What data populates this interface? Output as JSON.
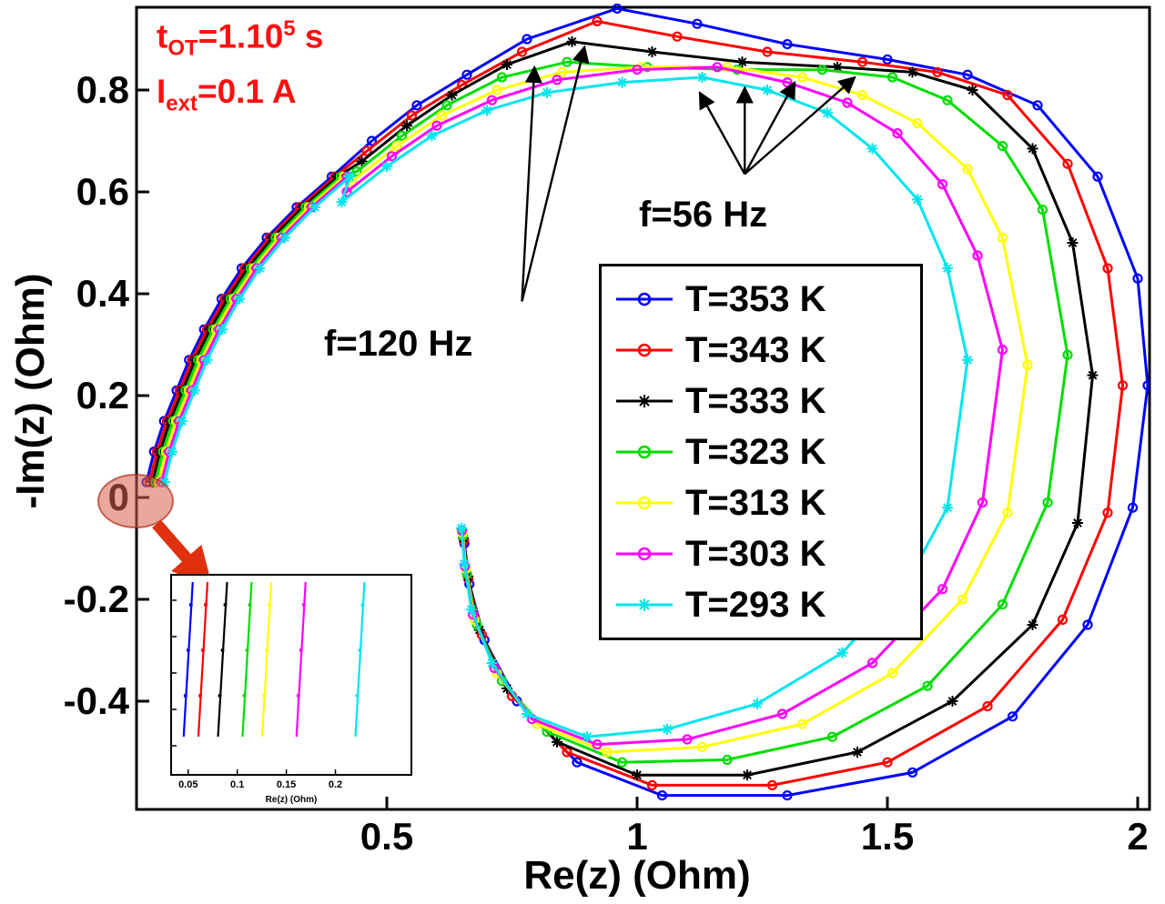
{
  "figure": {
    "background": "#ffffff",
    "plot_border_color": "#000000"
  },
  "params": {
    "color": "#ff1010",
    "line1": {
      "base": "t",
      "sub": "OT",
      "eq": "=1.10",
      "sup": "5",
      "unit": " s"
    },
    "line2": {
      "base": "I",
      "sub": "ext",
      "eq": "=0.1 A"
    }
  },
  "annotations": {
    "f56_label": "f=56 Hz",
    "f120_label": "f=120 Hz",
    "arrows": {
      "f120": {
        "tail": [
          0.77,
          0.385
        ],
        "heads": [
          [
            0.795,
            0.845
          ],
          [
            0.895,
            0.885
          ]
        ]
      },
      "f56": {
        "tail": [
          1.215,
          0.635
        ],
        "heads": [
          [
            1.125,
            0.795
          ],
          [
            1.215,
            0.805
          ],
          [
            1.315,
            0.815
          ],
          [
            1.435,
            0.825
          ]
        ]
      }
    }
  },
  "chart_data": {
    "type": "line",
    "title": "",
    "xlabel": "Re(z) (Ohm)",
    "ylabel": "-Im(z) (Ohm)",
    "xlim": [
      0,
      2.02
    ],
    "ylim": [
      -0.61,
      0.96
    ],
    "x_ticks": [
      0.5,
      1,
      1.5,
      2
    ],
    "x_tick_labels": [
      "0.5",
      "1",
      "1.5",
      "2"
    ],
    "y_ticks": [
      -0.4,
      -0.2,
      0,
      0.2,
      0.4,
      0.6,
      0.8
    ],
    "y_tick_labels": [
      "-0.4",
      "-0.2",
      "0",
      "0.2",
      "0.4",
      "0.6",
      "0.8"
    ],
    "grid": false,
    "legend_position": "center-right",
    "shared_branch": [
      [
        0.02,
        0.03
      ],
      [
        0.035,
        0.09
      ],
      [
        0.055,
        0.15
      ],
      [
        0.08,
        0.21
      ],
      [
        0.105,
        0.27
      ],
      [
        0.135,
        0.33
      ],
      [
        0.17,
        0.39
      ],
      [
        0.21,
        0.45
      ],
      [
        0.26,
        0.51
      ],
      [
        0.32,
        0.57
      ],
      [
        0.39,
        0.63
      ]
    ],
    "series": [
      {
        "name": "T=353 K",
        "temperature_K": 353,
        "color": "#0000ff",
        "marker": "o",
        "points": [
          [
            0.47,
            0.7
          ],
          [
            0.56,
            0.77
          ],
          [
            0.66,
            0.83
          ],
          [
            0.78,
            0.9
          ],
          [
            0.96,
            0.96
          ],
          [
            1.12,
            0.93
          ],
          [
            1.3,
            0.89
          ],
          [
            1.5,
            0.86
          ],
          [
            1.66,
            0.83
          ],
          [
            1.8,
            0.77
          ],
          [
            1.92,
            0.63
          ],
          [
            2.0,
            0.43
          ],
          [
            2.02,
            0.22
          ],
          [
            1.99,
            -0.02
          ],
          [
            1.9,
            -0.25
          ],
          [
            1.75,
            -0.43
          ],
          [
            1.55,
            -0.54
          ],
          [
            1.3,
            -0.585
          ],
          [
            1.05,
            -0.585
          ],
          [
            0.88,
            -0.52
          ],
          [
            0.76,
            -0.4
          ],
          [
            0.695,
            -0.28
          ],
          [
            0.665,
            -0.17
          ],
          [
            0.655,
            -0.09
          ]
        ]
      },
      {
        "name": "T=343 K",
        "temperature_K": 343,
        "color": "#ff0000",
        "marker": "o",
        "points": [
          [
            0.46,
            0.68
          ],
          [
            0.55,
            0.75
          ],
          [
            0.65,
            0.81
          ],
          [
            0.77,
            0.875
          ],
          [
            0.92,
            0.935
          ],
          [
            1.08,
            0.905
          ],
          [
            1.26,
            0.875
          ],
          [
            1.45,
            0.855
          ],
          [
            1.6,
            0.835
          ],
          [
            1.74,
            0.79
          ],
          [
            1.86,
            0.655
          ],
          [
            1.94,
            0.45
          ],
          [
            1.97,
            0.22
          ],
          [
            1.94,
            -0.03
          ],
          [
            1.85,
            -0.24
          ],
          [
            1.7,
            -0.41
          ],
          [
            1.5,
            -0.52
          ],
          [
            1.27,
            -0.565
          ],
          [
            1.03,
            -0.565
          ],
          [
            0.86,
            -0.5
          ],
          [
            0.75,
            -0.39
          ],
          [
            0.69,
            -0.27
          ],
          [
            0.663,
            -0.16
          ],
          [
            0.654,
            -0.085
          ]
        ]
      },
      {
        "name": "T=333 K",
        "temperature_K": 333,
        "color": "#000000",
        "marker": "*",
        "points": [
          [
            0.45,
            0.66
          ],
          [
            0.54,
            0.73
          ],
          [
            0.63,
            0.79
          ],
          [
            0.74,
            0.85
          ],
          [
            0.87,
            0.895
          ],
          [
            1.03,
            0.875
          ],
          [
            1.21,
            0.855
          ],
          [
            1.4,
            0.845
          ],
          [
            1.55,
            0.835
          ],
          [
            1.67,
            0.8
          ],
          [
            1.79,
            0.685
          ],
          [
            1.87,
            0.5
          ],
          [
            1.91,
            0.24
          ],
          [
            1.88,
            -0.05
          ],
          [
            1.79,
            -0.25
          ],
          [
            1.63,
            -0.4
          ],
          [
            1.44,
            -0.5
          ],
          [
            1.22,
            -0.545
          ],
          [
            1.0,
            -0.545
          ],
          [
            0.84,
            -0.48
          ],
          [
            0.74,
            -0.375
          ],
          [
            0.685,
            -0.26
          ],
          [
            0.662,
            -0.155
          ],
          [
            0.653,
            -0.08
          ]
        ]
      },
      {
        "name": "T=323 K",
        "temperature_K": 323,
        "color": "#00dd00",
        "marker": "o",
        "points": [
          [
            0.44,
            0.64
          ],
          [
            0.53,
            0.71
          ],
          [
            0.62,
            0.77
          ],
          [
            0.73,
            0.825
          ],
          [
            0.86,
            0.855
          ],
          [
            1.02,
            0.845
          ],
          [
            1.2,
            0.84
          ],
          [
            1.37,
            0.84
          ],
          [
            1.51,
            0.825
          ],
          [
            1.62,
            0.78
          ],
          [
            1.73,
            0.69
          ],
          [
            1.81,
            0.565
          ],
          [
            1.86,
            0.28
          ],
          [
            1.82,
            -0.01
          ],
          [
            1.73,
            -0.21
          ],
          [
            1.58,
            -0.37
          ],
          [
            1.39,
            -0.47
          ],
          [
            1.18,
            -0.515
          ],
          [
            0.97,
            -0.52
          ],
          [
            0.82,
            -0.46
          ],
          [
            0.73,
            -0.36
          ],
          [
            0.68,
            -0.25
          ],
          [
            0.66,
            -0.15
          ],
          [
            0.652,
            -0.075
          ]
        ]
      },
      {
        "name": "T=313 K",
        "temperature_K": 313,
        "color": "#ffff00",
        "marker": "o",
        "points": [
          [
            0.43,
            0.62
          ],
          [
            0.52,
            0.69
          ],
          [
            0.61,
            0.75
          ],
          [
            0.72,
            0.8
          ],
          [
            0.85,
            0.835
          ],
          [
            1.01,
            0.845
          ],
          [
            1.18,
            0.845
          ],
          [
            1.33,
            0.825
          ],
          [
            1.45,
            0.79
          ],
          [
            1.56,
            0.735
          ],
          [
            1.66,
            0.645
          ],
          [
            1.73,
            0.51
          ],
          [
            1.78,
            0.26
          ],
          [
            1.74,
            -0.03
          ],
          [
            1.65,
            -0.2
          ],
          [
            1.51,
            -0.345
          ],
          [
            1.33,
            -0.445
          ],
          [
            1.13,
            -0.49
          ],
          [
            0.94,
            -0.5
          ],
          [
            0.8,
            -0.445
          ],
          [
            0.72,
            -0.345
          ],
          [
            0.675,
            -0.24
          ],
          [
            0.658,
            -0.14
          ],
          [
            0.651,
            -0.07
          ]
        ]
      },
      {
        "name": "T=303 K",
        "temperature_K": 303,
        "color": "#ff00ff",
        "marker": "o",
        "points": [
          [
            0.42,
            0.6
          ],
          [
            0.51,
            0.67
          ],
          [
            0.6,
            0.73
          ],
          [
            0.71,
            0.78
          ],
          [
            0.84,
            0.82
          ],
          [
            1.0,
            0.84
          ],
          [
            1.16,
            0.845
          ],
          [
            1.3,
            0.815
          ],
          [
            1.42,
            0.775
          ],
          [
            1.52,
            0.715
          ],
          [
            1.61,
            0.615
          ],
          [
            1.68,
            0.475
          ],
          [
            1.73,
            0.29
          ],
          [
            1.69,
            -0.01
          ],
          [
            1.61,
            -0.18
          ],
          [
            1.47,
            -0.325
          ],
          [
            1.29,
            -0.425
          ],
          [
            1.1,
            -0.475
          ],
          [
            0.92,
            -0.485
          ],
          [
            0.79,
            -0.435
          ],
          [
            0.715,
            -0.335
          ],
          [
            0.672,
            -0.23
          ],
          [
            0.656,
            -0.135
          ],
          [
            0.65,
            -0.065
          ]
        ]
      },
      {
        "name": "T=293 K",
        "temperature_K": 293,
        "color": "#00e5ee",
        "marker": "*",
        "points": [
          [
            0.41,
            0.58
          ],
          [
            0.5,
            0.65
          ],
          [
            0.59,
            0.71
          ],
          [
            0.7,
            0.76
          ],
          [
            0.82,
            0.795
          ],
          [
            0.97,
            0.815
          ],
          [
            1.13,
            0.825
          ],
          [
            1.26,
            0.8
          ],
          [
            1.38,
            0.755
          ],
          [
            1.47,
            0.685
          ],
          [
            1.56,
            0.585
          ],
          [
            1.62,
            0.45
          ],
          [
            1.66,
            0.27
          ],
          [
            1.62,
            -0.02
          ],
          [
            1.54,
            -0.165
          ],
          [
            1.41,
            -0.305
          ],
          [
            1.24,
            -0.405
          ],
          [
            1.06,
            -0.455
          ],
          [
            0.9,
            -0.47
          ],
          [
            0.78,
            -0.425
          ],
          [
            0.71,
            -0.325
          ],
          [
            0.669,
            -0.22
          ],
          [
            0.655,
            -0.13
          ],
          [
            0.649,
            -0.06
          ]
        ]
      }
    ]
  },
  "inset": {
    "xlim": [
      0.04,
      0.27
    ],
    "x_tick_labels": [
      "0.05",
      "0.1",
      "0.15",
      "0.2"
    ],
    "x_ticks": [
      0.05,
      0.1,
      0.15,
      0.2
    ],
    "xlabel": "Re(z) (Ohm)",
    "series_x": [
      0.05,
      0.065,
      0.085,
      0.11,
      0.13,
      0.165,
      0.225
    ]
  }
}
